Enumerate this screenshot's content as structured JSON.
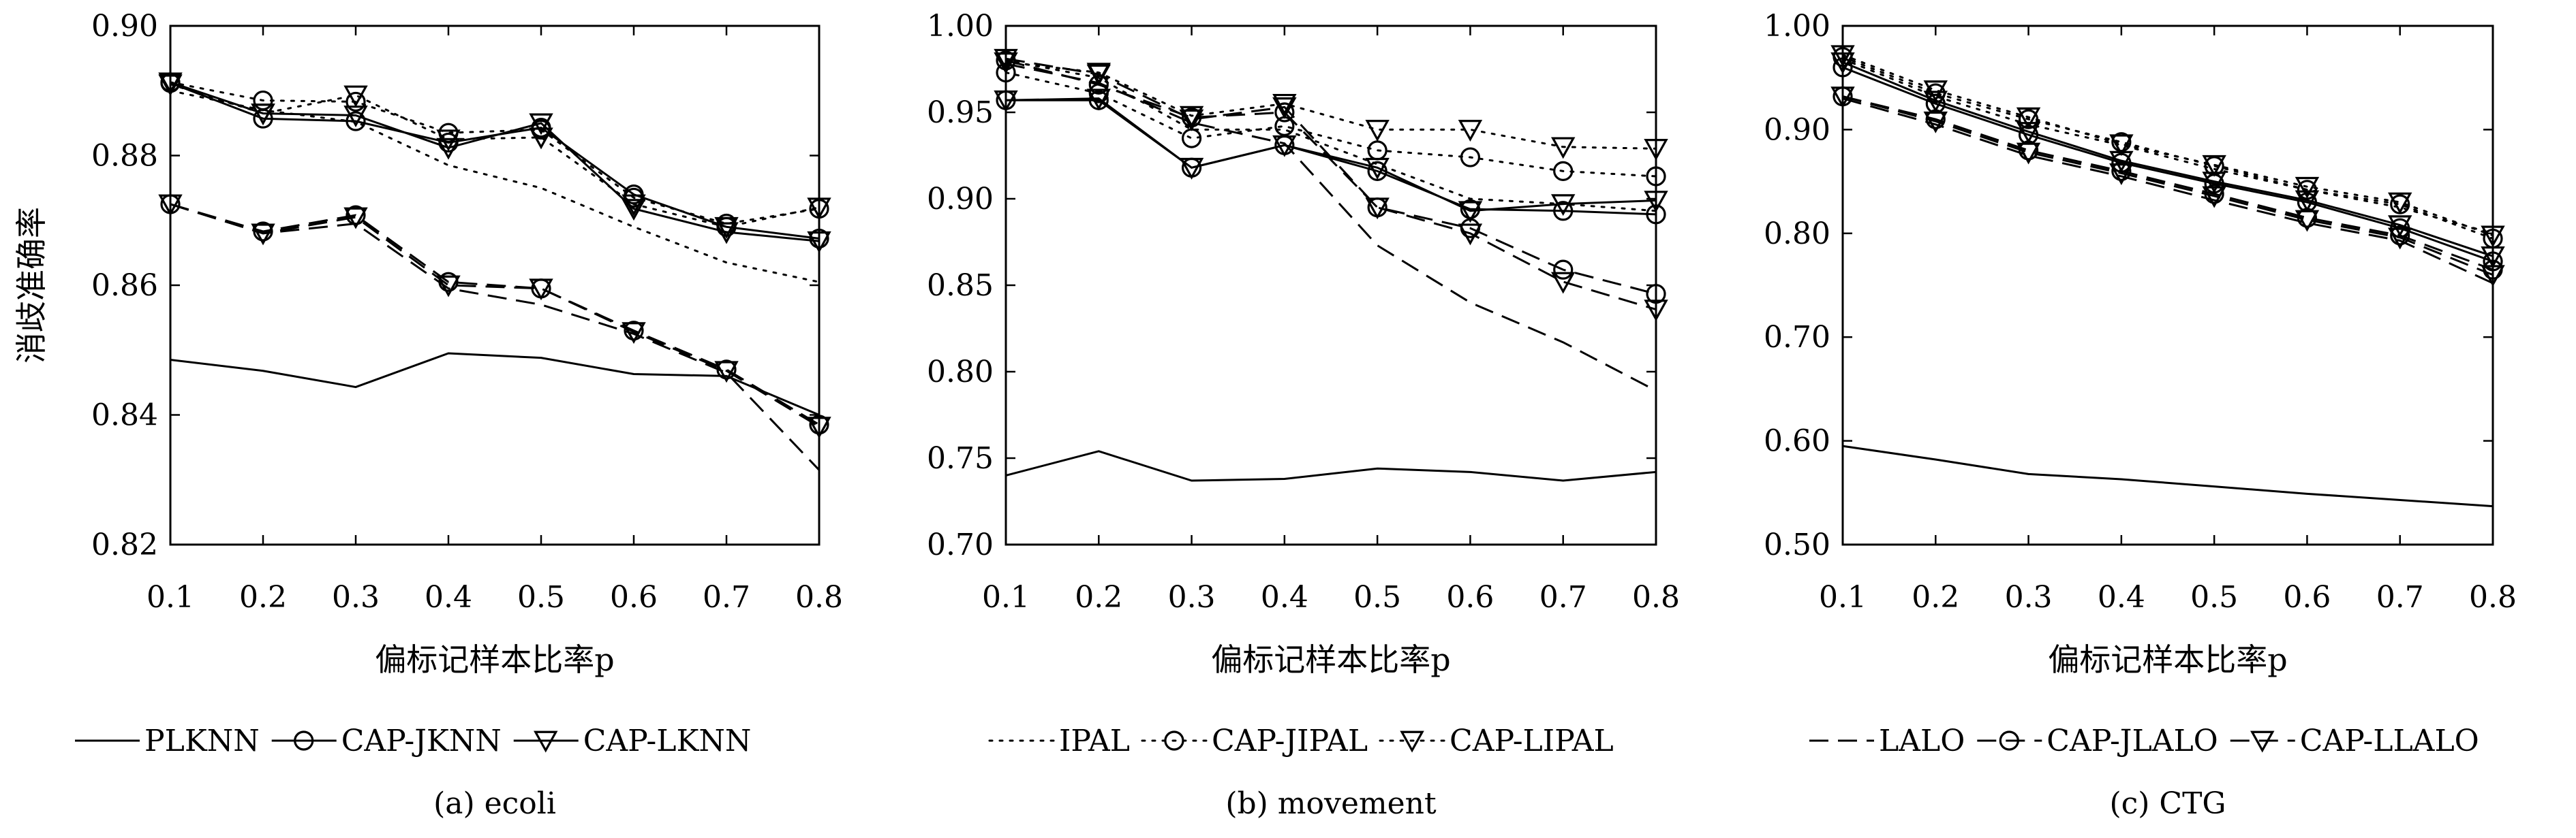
{
  "styles": {
    "PLKNN": {
      "dash": "",
      "marker": "none"
    },
    "CAP-JKNN": {
      "dash": "",
      "marker": "circle"
    },
    "CAP-LKNN": {
      "dash": "",
      "marker": "triangle"
    },
    "IPAL": {
      "dash": "dot",
      "marker": "none"
    },
    "CAP-JIPAL": {
      "dash": "dot",
      "marker": "circle"
    },
    "CAP-LIPAL": {
      "dash": "dot",
      "marker": "triangle"
    },
    "LALO": {
      "dash": "dash",
      "marker": "none"
    },
    "CAP-JLALO": {
      "dash": "dash",
      "marker": "circle"
    },
    "CAP-LLALO": {
      "dash": "dash",
      "marker": "triangle"
    }
  },
  "legend": [
    [
      "PLKNN",
      "CAP-JKNN",
      "CAP-LKNN"
    ],
    [
      "IPAL",
      "CAP-JIPAL",
      "CAP-LIPAL"
    ],
    [
      "LALO",
      "CAP-JLALO",
      "CAP-LLALO"
    ]
  ],
  "chart_data": [
    {
      "type": "line",
      "caption": "(a) ecoli",
      "xlabel": "偏标记样本比率p",
      "ylabel": "消歧准确率",
      "x": [
        0.1,
        0.2,
        0.3,
        0.4,
        0.5,
        0.6,
        0.7,
        0.8
      ],
      "xticks": [
        "0.1",
        "0.2",
        "0.3",
        "0.4",
        "0.5",
        "0.6",
        "0.7",
        "0.8"
      ],
      "ylim": [
        0.82,
        0.9
      ],
      "yticks": [
        "0.82",
        "0.84",
        "0.86",
        "0.88",
        "0.90"
      ],
      "series": [
        {
          "name": "PLKNN",
          "values": [
            0.8485,
            0.8468,
            0.8443,
            0.8495,
            0.8488,
            0.8463,
            0.846,
            0.84
          ]
        },
        {
          "name": "CAP-JKNN",
          "values": [
            0.8912,
            0.8857,
            0.8853,
            0.882,
            0.8843,
            0.874,
            0.869,
            0.8672
          ]
        },
        {
          "name": "CAP-LKNN",
          "values": [
            0.8913,
            0.8865,
            0.8862,
            0.8812,
            0.885,
            0.8718,
            0.8682,
            0.8668
          ]
        },
        {
          "name": "IPAL",
          "values": [
            0.89,
            0.887,
            0.8852,
            0.8785,
            0.875,
            0.869,
            0.8635,
            0.8605
          ]
        },
        {
          "name": "CAP-JIPAL",
          "values": [
            0.8913,
            0.8885,
            0.8883,
            0.8835,
            0.884,
            0.8735,
            0.8695,
            0.8718
          ]
        },
        {
          "name": "CAP-LIPAL",
          "values": [
            0.891,
            0.8865,
            0.8893,
            0.8825,
            0.8828,
            0.8725,
            0.869,
            0.872
          ]
        },
        {
          "name": "LALO",
          "values": [
            0.8725,
            0.868,
            0.8695,
            0.8595,
            0.857,
            0.8525,
            0.8465,
            0.8315
          ]
        },
        {
          "name": "CAP-JLALO",
          "values": [
            0.8725,
            0.8683,
            0.8708,
            0.8605,
            0.8595,
            0.853,
            0.847,
            0.8385
          ]
        },
        {
          "name": "CAP-LLALO",
          "values": [
            0.8725,
            0.868,
            0.8705,
            0.86,
            0.8595,
            0.8528,
            0.8468,
            0.8382
          ]
        }
      ]
    },
    {
      "type": "line",
      "caption": "(b) movement",
      "xlabel": "偏标记样本比率p",
      "ylabel": "",
      "x": [
        0.1,
        0.2,
        0.3,
        0.4,
        0.5,
        0.6,
        0.7,
        0.8
      ],
      "xticks": [
        "0.1",
        "0.2",
        "0.3",
        "0.4",
        "0.5",
        "0.6",
        "0.7",
        "0.8"
      ],
      "ylim": [
        0.7,
        1.0
      ],
      "yticks": [
        "0.70",
        "0.75",
        "0.80",
        "0.85",
        "0.90",
        "0.95",
        "1.00"
      ],
      "series": [
        {
          "name": "PLKNN",
          "values": [
            0.74,
            0.754,
            0.737,
            0.738,
            0.744,
            0.742,
            0.737,
            0.742
          ]
        },
        {
          "name": "CAP-JKNN",
          "values": [
            0.957,
            0.957,
            0.918,
            0.931,
            0.916,
            0.894,
            0.893,
            0.891
          ]
        },
        {
          "name": "CAP-LKNN",
          "values": [
            0.957,
            0.958,
            0.918,
            0.931,
            0.918,
            0.893,
            0.897,
            0.899
          ]
        },
        {
          "name": "IPAL",
          "values": [
            0.98,
            0.97,
            0.94,
            0.94,
            0.92,
            0.9,
            0.897,
            0.893
          ]
        },
        {
          "name": "CAP-JIPAL",
          "values": [
            0.973,
            0.961,
            0.935,
            0.942,
            0.928,
            0.924,
            0.916,
            0.913
          ]
        },
        {
          "name": "CAP-LIPAL",
          "values": [
            0.979,
            0.973,
            0.948,
            0.955,
            0.94,
            0.94,
            0.93,
            0.929
          ]
        },
        {
          "name": "LALO",
          "values": [
            0.978,
            0.967,
            0.944,
            0.932,
            0.873,
            0.84,
            0.817,
            0.789
          ]
        },
        {
          "name": "CAP-JLALO",
          "values": [
            0.98,
            0.966,
            0.947,
            0.95,
            0.895,
            0.883,
            0.859,
            0.845
          ]
        },
        {
          "name": "CAP-LLALO",
          "values": [
            0.981,
            0.972,
            0.946,
            0.953,
            0.895,
            0.88,
            0.852,
            0.836
          ]
        }
      ]
    },
    {
      "type": "line",
      "caption": "(c) CTG",
      "xlabel": "偏标记样本比率p",
      "ylabel": "",
      "x": [
        0.1,
        0.2,
        0.3,
        0.4,
        0.5,
        0.6,
        0.7,
        0.8
      ],
      "xticks": [
        "0.1",
        "0.2",
        "0.3",
        "0.4",
        "0.5",
        "0.6",
        "0.7",
        "0.8"
      ],
      "ylim": [
        0.5,
        1.0
      ],
      "yticks": [
        "0.50",
        "0.60",
        "0.70",
        "0.80",
        "0.90",
        "1.00"
      ],
      "series": [
        {
          "name": "PLKNN",
          "values": [
            0.595,
            0.582,
            0.568,
            0.563,
            0.556,
            0.549,
            0.543,
            0.537
          ]
        },
        {
          "name": "CAP-JKNN",
          "values": [
            0.96,
            0.925,
            0.895,
            0.868,
            0.848,
            0.83,
            0.805,
            0.773
          ]
        },
        {
          "name": "CAP-LKNN",
          "values": [
            0.965,
            0.928,
            0.898,
            0.87,
            0.85,
            0.832,
            0.808,
            0.778
          ]
        },
        {
          "name": "IPAL",
          "values": [
            0.968,
            0.932,
            0.905,
            0.885,
            0.862,
            0.842,
            0.825,
            0.8
          ]
        },
        {
          "name": "CAP-JIPAL",
          "values": [
            0.97,
            0.935,
            0.91,
            0.888,
            0.865,
            0.842,
            0.828,
            0.795
          ]
        },
        {
          "name": "CAP-LIPAL",
          "values": [
            0.972,
            0.938,
            0.912,
            0.886,
            0.866,
            0.845,
            0.83,
            0.798
          ]
        },
        {
          "name": "LALO",
          "values": [
            0.93,
            0.905,
            0.875,
            0.855,
            0.832,
            0.81,
            0.793,
            0.752
          ]
        },
        {
          "name": "CAP-JLALO",
          "values": [
            0.932,
            0.91,
            0.88,
            0.86,
            0.838,
            0.815,
            0.798,
            0.765
          ]
        },
        {
          "name": "CAP-LLALO",
          "values": [
            0.932,
            0.908,
            0.878,
            0.858,
            0.836,
            0.813,
            0.796,
            0.76
          ]
        }
      ]
    }
  ]
}
